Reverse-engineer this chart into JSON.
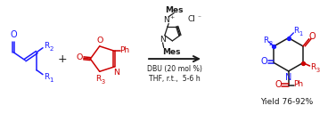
{
  "bg_color": "#ffffff",
  "blue": "#1a1aff",
  "red": "#cc0000",
  "black": "#1a1a1a",
  "figsize": [
    3.77,
    1.46
  ],
  "dpi": 100,
  "yield_text": "Yield 76-92%",
  "conditions": [
    "DBU (20 mol %)",
    "THF, r.t.,  5-6 h"
  ]
}
